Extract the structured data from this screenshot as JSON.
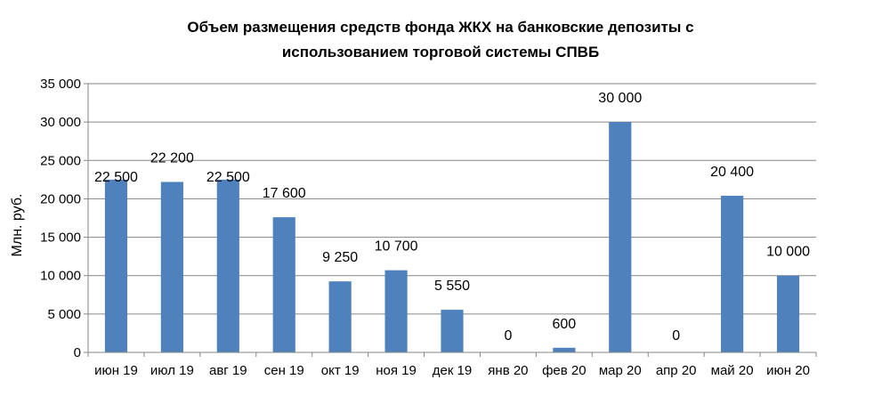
{
  "chart_data": {
    "type": "bar",
    "title_lines": [
      "Объем размещения средств фонда ЖКХ на банковские депозиты с",
      "использованием торговой системы СПВБ"
    ],
    "ylabel": "Млн. руб.",
    "xlabel": "",
    "ylim": [
      0,
      35000
    ],
    "ytick_values": [
      0,
      5000,
      10000,
      15000,
      20000,
      25000,
      30000,
      35000
    ],
    "ytick_labels": [
      "0",
      "5 000",
      "10 000",
      "15 000",
      "20 000",
      "25 000",
      "30 000",
      "35 000"
    ],
    "grid": true,
    "legend": "none",
    "bar_color": "#4f81bd",
    "categories": [
      "июн 19",
      "июл 19",
      "авг 19",
      "сен 19",
      "окт 19",
      "ноя 19",
      "дек 19",
      "янв 20",
      "фев 20",
      "мар 20",
      "апр 20",
      "май 20",
      "июн 20"
    ],
    "values": [
      22500,
      22200,
      22500,
      17600,
      9250,
      10700,
      5550,
      0,
      600,
      30000,
      0,
      20400,
      10000
    ],
    "data_labels": [
      "22 500",
      "22 200",
      "22 500",
      "17 600",
      "9 250",
      "10 700",
      "5 550",
      "0",
      "600",
      "30 000",
      "0",
      "20 400",
      "10 000"
    ]
  }
}
